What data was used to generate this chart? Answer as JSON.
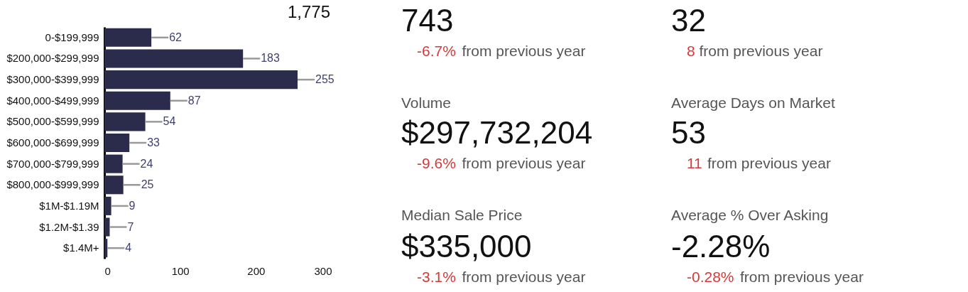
{
  "chart_data": [
    {
      "type": "bar",
      "orientation": "horizontal",
      "categories": [
        "0-$199,999",
        "$200,000-$299,999",
        "$300,000-$399,999",
        "$400,000-$499,999",
        "$500,000-$599,999",
        "$600,000-$699,999",
        "$700,000-$799,999",
        "$800,000-$999,999",
        "$1M-$1.19M",
        "$1.2M-$1.39",
        "$1.4M+"
      ],
      "values": [
        62,
        183,
        255,
        87,
        54,
        33,
        24,
        25,
        9,
        7,
        4
      ],
      "color": "#2b2b4c",
      "xlim": [
        0,
        300
      ],
      "xticks": [
        0,
        100,
        200,
        300
      ],
      "grid": false,
      "data_labels": true,
      "annotations": [
        "1,775"
      ]
    },
    {
      "type": "other",
      "annotations": [
        "743",
        "-6.7%",
        "from previous year",
        "Volume",
        "$297,732,204",
        "-9.6%",
        "from previous year",
        "Median Sale Price",
        "$335,000",
        "-3.1%",
        "from previous year",
        "32",
        "8",
        "from previous year",
        "Average Days on Market",
        "53",
        "11",
        "from previous year",
        "Average % Over Asking",
        "-2.28%",
        "-0.28%",
        "from previous year"
      ]
    }
  ]
}
